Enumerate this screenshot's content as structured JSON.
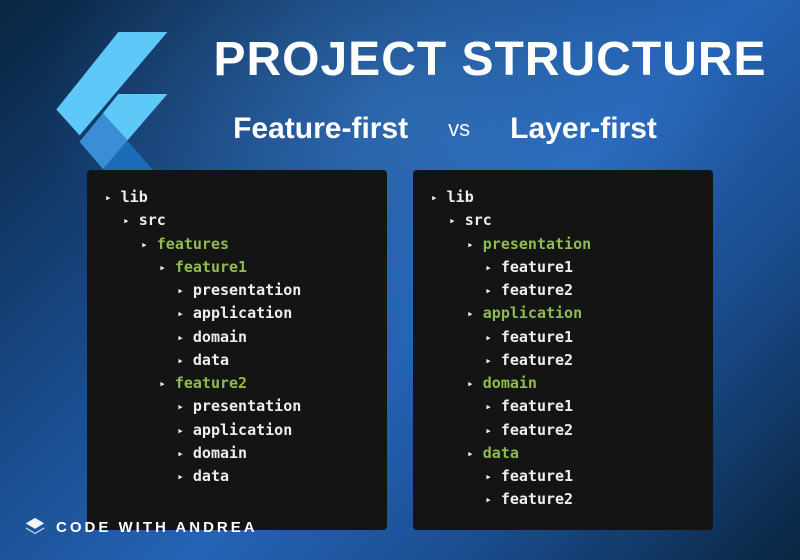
{
  "title": "PROJECT STRUCTURE",
  "left_subtitle": "Feature-first",
  "vs": "vs",
  "right_subtitle": "Layer-first",
  "brand": "CODE WITH ANDREA",
  "colors": {
    "bg_grad_start": "#0a2540",
    "bg_grad_mid": "#2563b5",
    "panel_bg": "#141414",
    "text_white": "#ffffff",
    "tree_text": "#eeeeee",
    "highlight": "#8fbc4f",
    "logo_light": "#5ec8f8",
    "logo_dark": "#1a6bb8"
  },
  "typography": {
    "title_size": 48,
    "subtitle_size": 30,
    "vs_size": 22,
    "tree_size": 15,
    "brand_size": 15,
    "tree_font": "monospace",
    "ui_font": "sans-serif"
  },
  "left_tree": [
    {
      "d": 0,
      "t": "lib",
      "hl": false
    },
    {
      "d": 1,
      "t": "src",
      "hl": false
    },
    {
      "d": 2,
      "t": "features",
      "hl": true
    },
    {
      "d": 3,
      "t": "feature1",
      "hl": true
    },
    {
      "d": 4,
      "t": "presentation",
      "hl": false
    },
    {
      "d": 4,
      "t": "application",
      "hl": false
    },
    {
      "d": 4,
      "t": "domain",
      "hl": false
    },
    {
      "d": 4,
      "t": "data",
      "hl": false
    },
    {
      "d": 3,
      "t": "feature2",
      "hl": true
    },
    {
      "d": 4,
      "t": "presentation",
      "hl": false
    },
    {
      "d": 4,
      "t": "application",
      "hl": false
    },
    {
      "d": 4,
      "t": "domain",
      "hl": false
    },
    {
      "d": 4,
      "t": "data",
      "hl": false
    }
  ],
  "right_tree": [
    {
      "d": 0,
      "t": "lib",
      "hl": false
    },
    {
      "d": 1,
      "t": "src",
      "hl": false
    },
    {
      "d": 2,
      "t": "presentation",
      "hl": true
    },
    {
      "d": 3,
      "t": "feature1",
      "hl": false
    },
    {
      "d": 3,
      "t": "feature2",
      "hl": false
    },
    {
      "d": 2,
      "t": "application",
      "hl": true
    },
    {
      "d": 3,
      "t": "feature1",
      "hl": false
    },
    {
      "d": 3,
      "t": "feature2",
      "hl": false
    },
    {
      "d": 2,
      "t": "domain",
      "hl": true
    },
    {
      "d": 3,
      "t": "feature1",
      "hl": false
    },
    {
      "d": 3,
      "t": "feature2",
      "hl": false
    },
    {
      "d": 2,
      "t": "data",
      "hl": true
    },
    {
      "d": 3,
      "t": "feature1",
      "hl": false
    },
    {
      "d": 3,
      "t": "feature2",
      "hl": false
    }
  ]
}
